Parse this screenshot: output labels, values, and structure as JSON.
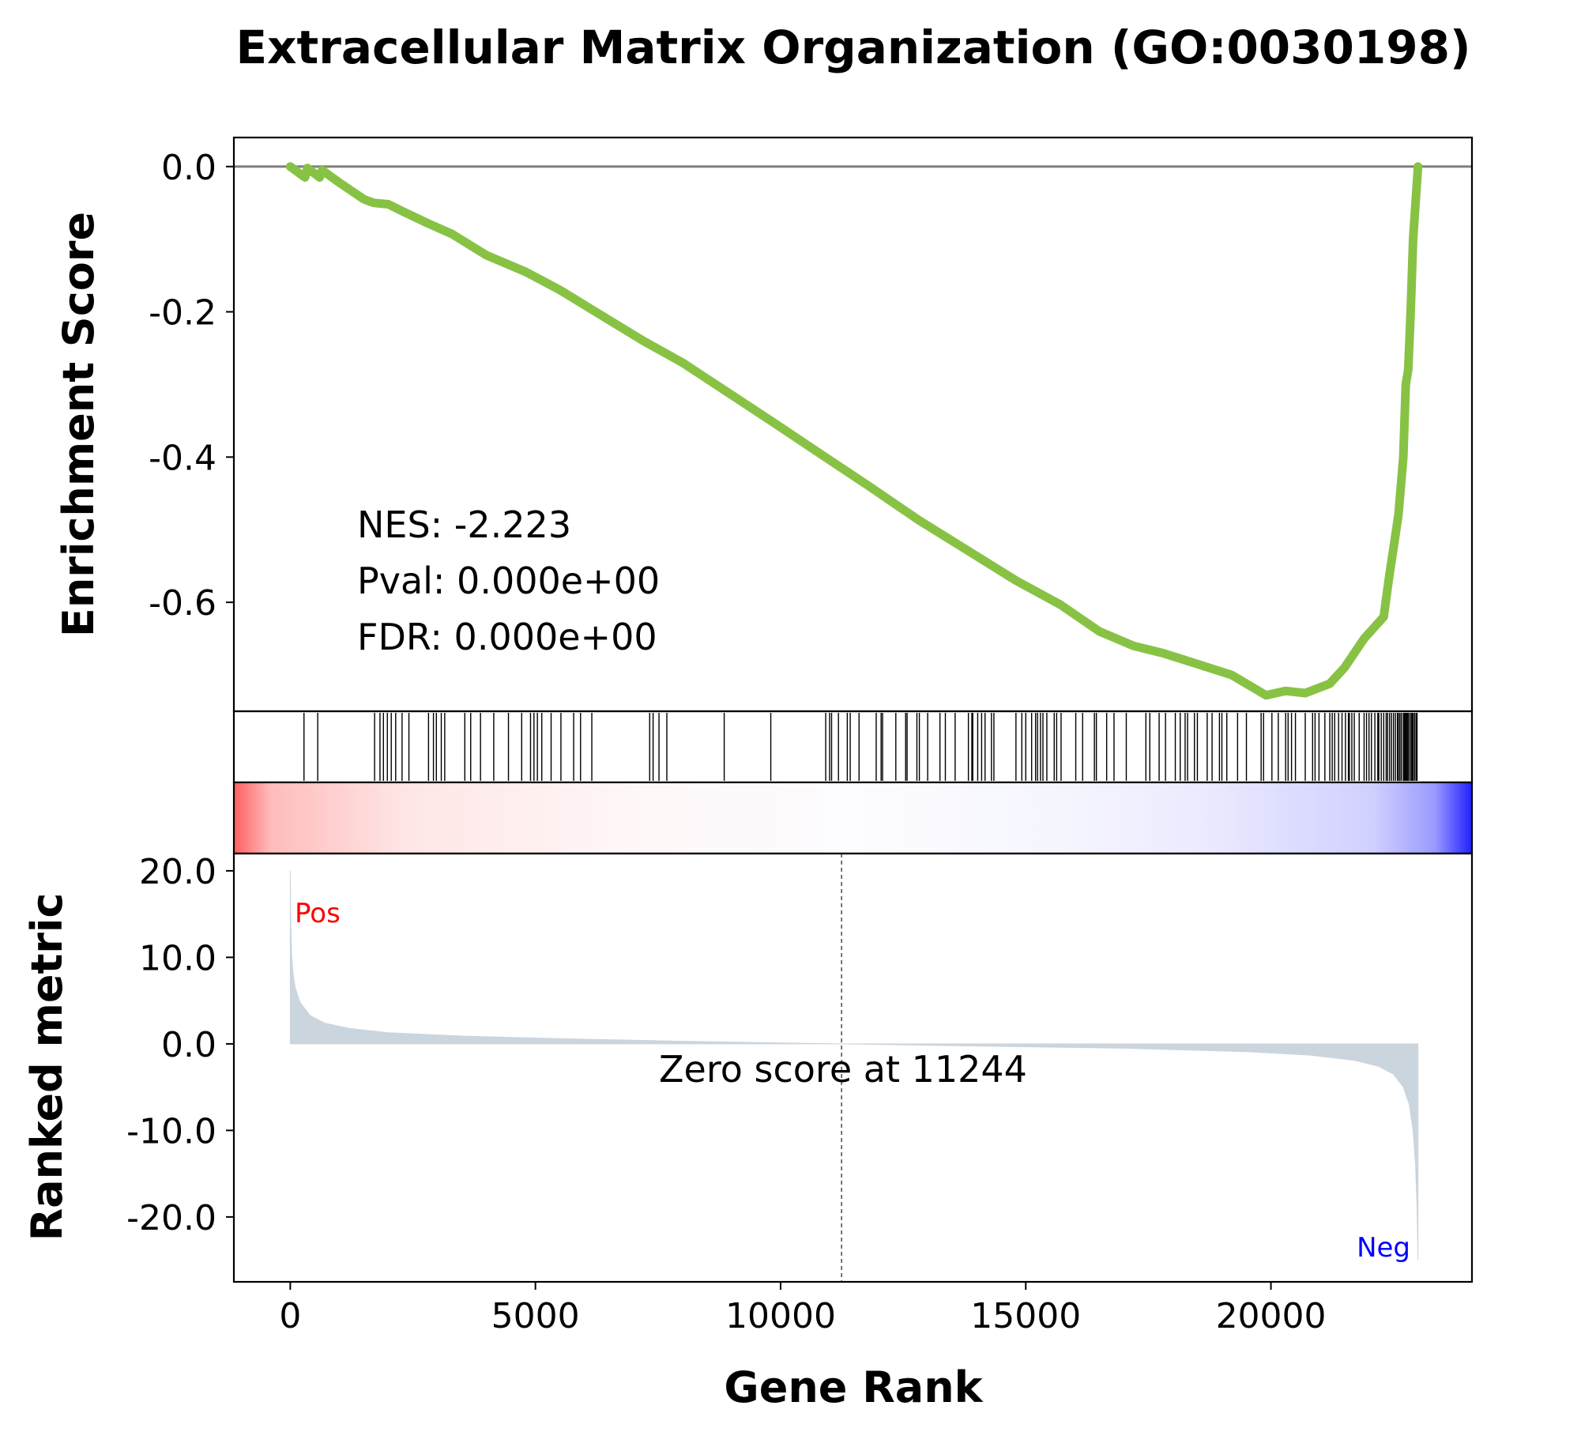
{
  "chart_data": {
    "type": "line",
    "title": "Extracellular Matrix Organization (GO:0030198)",
    "xlabel": "Gene Rank",
    "ylabel_top": "Enrichment Score",
    "ylabel_bottom": "Ranked metric",
    "xlim": [
      -1150,
      24100
    ],
    "x_ticks": [
      0,
      5000,
      10000,
      15000,
      20000
    ],
    "x_tick_labels": [
      "0",
      "5000",
      "10000",
      "15000",
      "20000"
    ],
    "es_ylim": [
      -0.75,
      0.04
    ],
    "es_ticks": [
      0.0,
      -0.2,
      -0.4,
      -0.6
    ],
    "es_tick_labels": [
      "0.0",
      "-0.2",
      "-0.4",
      "-0.6"
    ],
    "metric_ylim": [
      -27.5,
      22
    ],
    "metric_ticks": [
      20,
      10,
      0,
      -10,
      -20
    ],
    "metric_tick_labels": [
      "20.0",
      "10.0",
      "0.0",
      "-10.0",
      "-20.0"
    ],
    "stats": {
      "nes": "NES: -2.223",
      "pval": "Pval: 0.000e+00",
      "fdr": "FDR: 0.000e+00"
    },
    "zero_score_label": "Zero score at 11244",
    "zero_score_rank": 11244,
    "pos_label": "Pos",
    "neg_label": "Neg",
    "colors": {
      "es_line": "#88c244",
      "metric_fill": "#cbd5de",
      "baseline": "#808080",
      "pos": "#ff0000",
      "neg": "#0000ff"
    },
    "n_genes": 23000,
    "series": [
      {
        "name": "",
        "x": [
          0,
          300,
          350,
          600,
          650,
          1000,
          1500,
          1700,
          2000,
          2300,
          2800,
          3300,
          4000,
          4800,
          5500,
          6300,
          7200,
          8000,
          8900,
          9800,
          10800,
          11800,
          12800,
          13800,
          14800,
          15700,
          16500,
          17200,
          17800,
          18500,
          19200,
          19900,
          20300,
          20700,
          21200,
          21500,
          21900,
          22300,
          22400,
          22600,
          22700,
          22750,
          22800,
          22850,
          22900,
          22950,
          23000
        ],
        "values": [
          0.0,
          -0.015,
          -0.002,
          -0.015,
          -0.005,
          -0.022,
          -0.045,
          -0.05,
          -0.052,
          -0.062,
          -0.078,
          -0.093,
          -0.122,
          -0.145,
          -0.17,
          -0.203,
          -0.24,
          -0.27,
          -0.31,
          -0.35,
          -0.395,
          -0.44,
          -0.486,
          -0.528,
          -0.57,
          -0.603,
          -0.64,
          -0.66,
          -0.67,
          -0.685,
          -0.7,
          -0.728,
          -0.722,
          -0.725,
          -0.712,
          -0.69,
          -0.65,
          -0.62,
          -0.57,
          -0.48,
          -0.4,
          -0.3,
          -0.28,
          -0.2,
          -0.1,
          -0.05,
          0.0
        ]
      }
    ],
    "hit_ranks": [
      280,
      560,
      1720,
      1830,
      1900,
      1980,
      2060,
      2150,
      2280,
      2420,
      2820,
      2920,
      2980,
      3080,
      3150,
      3560,
      3680,
      3880,
      4150,
      4450,
      4720,
      4900,
      4970,
      5040,
      5130,
      5320,
      5520,
      5780,
      5920,
      6150,
      7330,
      7400,
      7520,
      7680,
      8850,
      9800,
      10920,
      11000,
      11040,
      11180,
      11360,
      11420,
      11600,
      11950,
      12050,
      12080,
      12350,
      12550,
      12580,
      12780,
      12830,
      13000,
      13250,
      13360,
      13560,
      13830,
      13900,
      13920,
      14020,
      14100,
      14170,
      14300,
      14350,
      14800,
      14920,
      15000,
      15120,
      15200,
      15240,
      15300,
      15350,
      15430,
      15580,
      15630,
      15720,
      16020,
      16160,
      16400,
      16440,
      16650,
      16800,
      17050,
      17450,
      17530,
      17720,
      17850,
      18050,
      18150,
      18250,
      18300,
      18440,
      18500,
      18700,
      18800,
      18950,
      19000,
      19100,
      19320,
      19500,
      19800,
      19850,
      20020,
      20150,
      20300,
      20350,
      20420,
      20500,
      20700,
      20850,
      20900,
      20980,
      21100,
      21200,
      21250,
      21300,
      21380,
      21450,
      21520,
      21580,
      21600,
      21650,
      21700,
      21800,
      21900,
      21950,
      22000,
      22050,
      22120,
      22180,
      22200,
      22250,
      22300,
      22350,
      22380,
      22420,
      22460,
      22500,
      22540,
      22580,
      22600,
      22630,
      22660,
      22700,
      22720,
      22740,
      22760,
      22780,
      22800,
      22830,
      22860,
      22880,
      22900,
      22930,
      22960,
      22980
    ],
    "metric_curve": {
      "x": [
        0,
        10,
        30,
        60,
        100,
        200,
        400,
        700,
        1200,
        2000,
        3500,
        5500,
        8000,
        11244,
        14000,
        17000,
        19500,
        20800,
        21700,
        22200,
        22500,
        22700,
        22820,
        22900,
        22950,
        22980,
        23000
      ],
      "values": [
        20.0,
        14.0,
        10.0,
        8.0,
        6.5,
        4.8,
        3.3,
        2.4,
        1.8,
        1.3,
        0.9,
        0.6,
        0.3,
        0.0,
        -0.25,
        -0.5,
        -0.9,
        -1.3,
        -1.9,
        -2.6,
        -3.5,
        -5.0,
        -7.0,
        -10.0,
        -14.0,
        -19.0,
        -25.0
      ]
    }
  }
}
